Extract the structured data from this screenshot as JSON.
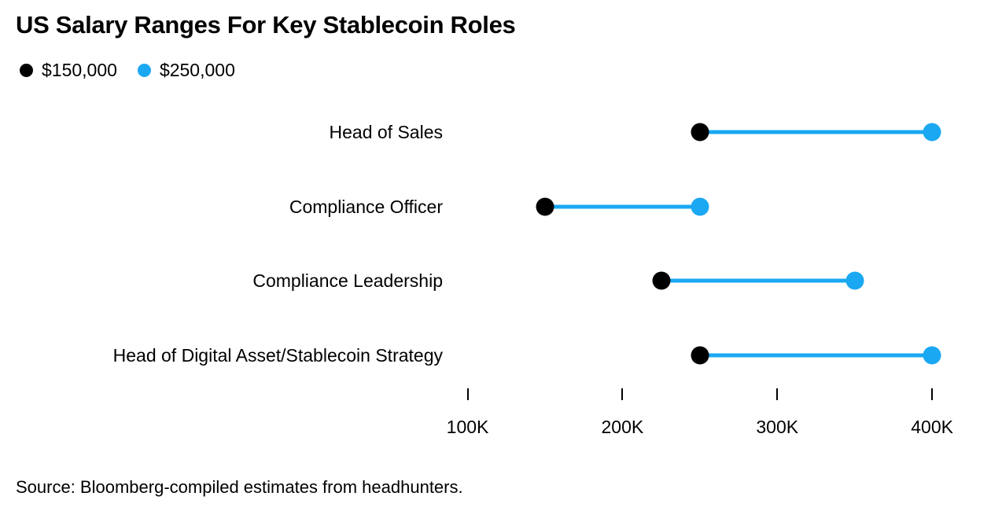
{
  "title": "US Salary Ranges For Key Stablecoin Roles",
  "legend": {
    "items": [
      {
        "label": "$150,000",
        "color": "#000000",
        "icon": "min-dot-icon"
      },
      {
        "label": "$250,000",
        "color": "#1aa8f2",
        "icon": "max-dot-icon"
      }
    ]
  },
  "colors": {
    "background": "#ffffff",
    "text": "#000000",
    "min_dot": "#000000",
    "max_dot": "#1aa8f2",
    "range_line": "#1aa8f2",
    "tick": "#000000"
  },
  "chart_data": {
    "type": "dumbbell",
    "title": "US Salary Ranges For Key Stablecoin Roles",
    "categories": [
      "Head of Sales",
      "Compliance Officer",
      "Compliance Leadership",
      "Head of Digital Asset/Stablecoin Strategy"
    ],
    "series": [
      {
        "name": "$150,000",
        "role": "range-min",
        "color": "#000000",
        "values": [
          250000,
          150000,
          225000,
          250000
        ]
      },
      {
        "name": "$250,000",
        "role": "range-max",
        "color": "#1aa8f2",
        "values": [
          400000,
          250000,
          350000,
          400000
        ]
      }
    ],
    "x_ticks": [
      {
        "value": 100000,
        "label": "100K"
      },
      {
        "value": 200000,
        "label": "200K"
      },
      {
        "value": 300000,
        "label": "300K"
      },
      {
        "value": 400000,
        "label": "400K"
      }
    ],
    "xlim": [
      85000,
      435000
    ],
    "grid": false,
    "legend_position": "top-left",
    "xlabel": "",
    "ylabel": ""
  },
  "source": "Source: Bloomberg-compiled estimates from headhunters."
}
